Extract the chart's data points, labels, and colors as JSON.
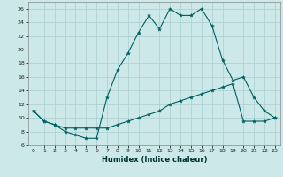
{
  "xlabel": "Humidex (Indice chaleur)",
  "background_color": "#cce8e8",
  "line_color": "#006060",
  "grid_color": "#aacece",
  "xlim": [
    -0.5,
    23.5
  ],
  "ylim": [
    6,
    27
  ],
  "yticks": [
    6,
    8,
    10,
    12,
    14,
    16,
    18,
    20,
    22,
    24,
    26
  ],
  "xticks": [
    0,
    1,
    2,
    3,
    4,
    5,
    6,
    7,
    8,
    9,
    10,
    11,
    12,
    13,
    14,
    15,
    16,
    17,
    18,
    19,
    20,
    21,
    22,
    23
  ],
  "series1_x": [
    0,
    1,
    2,
    3,
    4,
    5,
    6,
    7,
    8,
    9,
    10,
    11,
    12,
    13,
    14,
    15,
    16,
    17,
    18,
    19,
    20,
    21,
    22,
    23
  ],
  "series1_y": [
    11,
    9.5,
    9,
    8,
    7.5,
    7,
    7,
    13,
    17,
    19.5,
    22.5,
    25,
    23,
    26,
    25,
    25,
    26,
    23.5,
    18.5,
    15.5,
    16,
    13,
    11,
    10
  ],
  "series2_x": [
    0,
    1,
    2,
    3,
    4,
    5,
    6,
    7,
    8,
    9,
    10,
    11,
    12,
    13,
    14,
    15,
    16,
    17,
    18,
    19,
    20,
    21,
    22,
    23
  ],
  "series2_y": [
    11,
    9.5,
    9,
    8.5,
    8.5,
    8.5,
    8.5,
    8.5,
    9,
    9.5,
    10,
    10.5,
    11,
    12,
    12.5,
    13,
    13.5,
    14,
    14.5,
    15,
    9.5,
    9.5,
    9.5,
    10
  ]
}
